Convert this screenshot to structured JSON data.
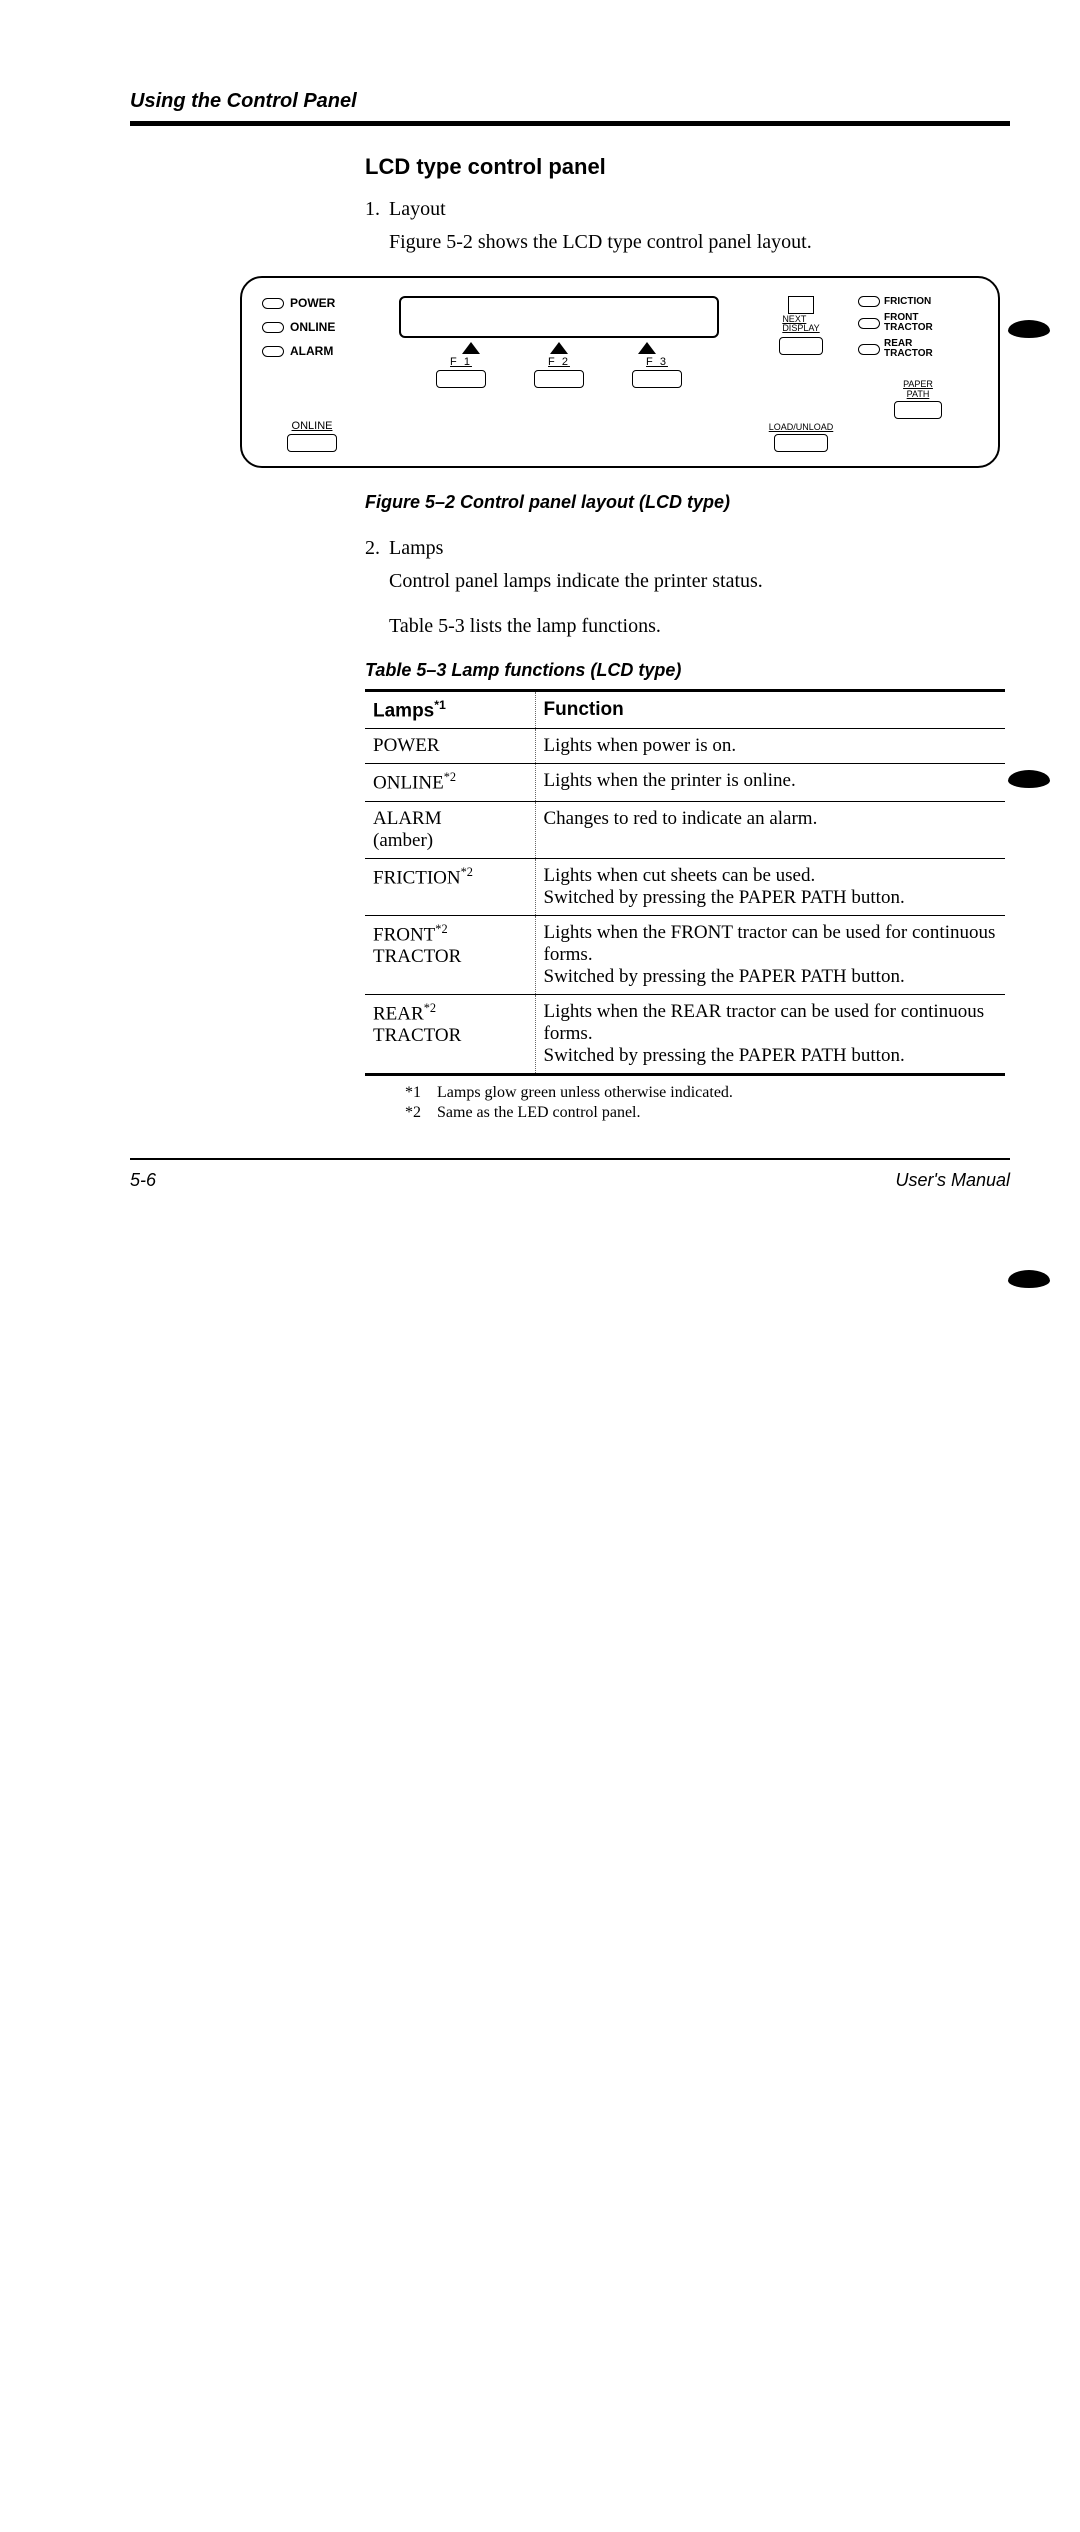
{
  "header": "Using the Control Panel",
  "section_title": "LCD type control panel",
  "item1_num": "1.",
  "item1_label": "Layout",
  "item1_body": "Figure 5-2 shows the LCD type control panel layout.",
  "panel": {
    "left_lamps": [
      "POWER",
      "ONLINE",
      "ALARM"
    ],
    "online_btn": "ONLINE",
    "fkeys": [
      "F   1",
      "F   2",
      "F   3"
    ],
    "next_display": "NEXT\nDISPLAY",
    "load_unload": "LOAD/UNLOAD",
    "right_lamps": [
      "FRICTION",
      "FRONT\nTRACTOR",
      "REAR\nTRACTOR"
    ],
    "paper_path": "PAPER\nPATH"
  },
  "figure_caption": "Figure 5–2    Control panel layout (LCD type)",
  "item2_num": "2.",
  "item2_label": "Lamps",
  "item2_body1": "Control panel lamps indicate the printer status.",
  "item2_body2": "Table 5-3 lists the lamp functions.",
  "table_caption": "Table 5–3    Lamp functions (LCD type)",
  "table": {
    "head_lamps": "Lamps",
    "head_lamps_sup": "*1",
    "head_func": "Function",
    "rows": [
      {
        "lamp": "POWER",
        "sup": "",
        "func": "Lights when power is on."
      },
      {
        "lamp": "ONLINE",
        "sup": "*2",
        "func": "Lights when the printer is online."
      },
      {
        "lamp": "ALARM\n(amber)",
        "sup": "",
        "func": "Changes to red to indicate an alarm."
      },
      {
        "lamp": "FRICTION",
        "sup": "*2",
        "func": "Lights when cut sheets can be used.\nSwitched by pressing the PAPER PATH button."
      },
      {
        "lamp": "FRONT\nTRACTOR",
        "sup": "*2",
        "func": "Lights when the FRONT tractor can be used for continuous forms.\nSwitched by pressing the PAPER PATH button."
      },
      {
        "lamp": "REAR\nTRACTOR",
        "sup": "*2",
        "func": "Lights when the REAR tractor can be used for continuous forms.\nSwitched by pressing the PAPER PATH button."
      }
    ]
  },
  "footnote1_m": "*1",
  "footnote1": "Lamps glow green unless otherwise indicated.",
  "footnote2_m": "*2",
  "footnote2": "Same as the LED control panel.",
  "footer_page": "5-6",
  "footer_right": "User's Manual"
}
